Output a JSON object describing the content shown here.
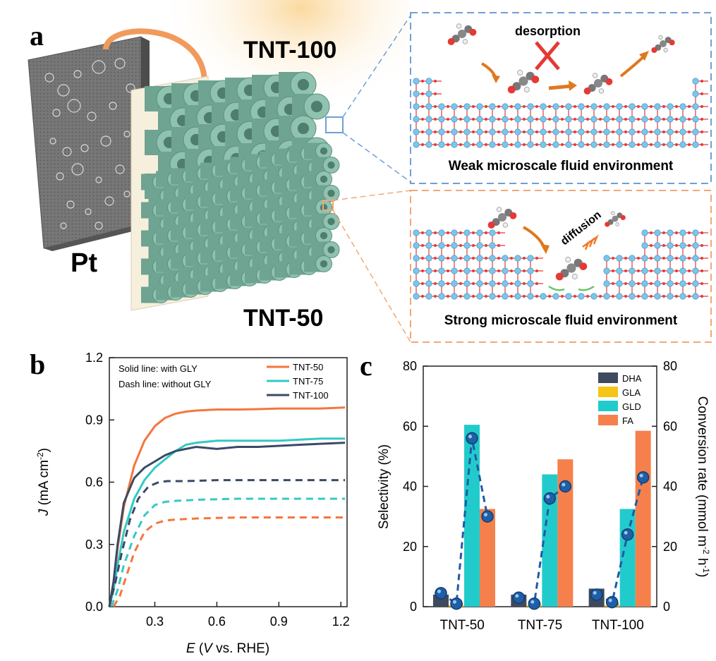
{
  "panel_a": {
    "label": "a",
    "electrode_label": "Pt",
    "tnt100_label": "TNT-100",
    "tnt50_label": "TNT-50",
    "top_box": {
      "process_label": "desorption",
      "caption": "Weak microscale fluid environment"
    },
    "bottom_box": {
      "process_label": "diffusion",
      "caption": "Strong microscale fluid environment"
    },
    "colors": {
      "tube": "#8fc3b0",
      "tube_dark": "#6fa392",
      "electrode": "#6b6b6b",
      "cable": "#f19a5c",
      "blue_box": "#6f9fd8",
      "orange_box": "#f1a878",
      "atom_ti": "#7ec5ea",
      "atom_o": "#e53935"
    }
  },
  "panel_b": {
    "label": "b"
  },
  "panel_c": {
    "label": "c"
  },
  "chart_data": [
    {
      "type": "line",
      "title": "",
      "xlabel": "E (V vs. RHE)",
      "ylabel": "J (mA cm-2)",
      "xlim": [
        0.08,
        1.23
      ],
      "ylim": [
        0,
        1.2
      ],
      "xticks": [
        "0.3",
        "0.6",
        "0.9",
        "1.2"
      ],
      "yticks": [
        "0.0",
        "0.3",
        "0.6",
        "0.9",
        "1.2"
      ],
      "annotations": [
        "Solid line: with GLY",
        "Dash line: without GLY"
      ],
      "legend": [
        "TNT-50",
        "TNT-75",
        "TNT-100"
      ],
      "legend_position": "top-right",
      "colors": {
        "TNT-50": "#f4763f",
        "TNT-75": "#35c9c3",
        "TNT-100": "#3a4a66"
      },
      "series": [
        {
          "name": "TNT-50",
          "style": "solid",
          "x": [
            0.08,
            0.1,
            0.12,
            0.15,
            0.2,
            0.25,
            0.3,
            0.35,
            0.4,
            0.45,
            0.5,
            0.6,
            0.7,
            0.8,
            0.9,
            1.0,
            1.1,
            1.22
          ],
          "y": [
            0.0,
            0.1,
            0.28,
            0.48,
            0.68,
            0.8,
            0.87,
            0.91,
            0.93,
            0.94,
            0.945,
            0.95,
            0.95,
            0.952,
            0.955,
            0.955,
            0.955,
            0.96
          ]
        },
        {
          "name": "TNT-75",
          "style": "solid",
          "x": [
            0.08,
            0.1,
            0.12,
            0.15,
            0.2,
            0.25,
            0.3,
            0.35,
            0.4,
            0.45,
            0.5,
            0.6,
            0.7,
            0.8,
            0.9,
            1.0,
            1.1,
            1.22
          ],
          "y": [
            0.0,
            0.08,
            0.2,
            0.36,
            0.52,
            0.61,
            0.67,
            0.71,
            0.75,
            0.78,
            0.79,
            0.8,
            0.8,
            0.8,
            0.8,
            0.805,
            0.81,
            0.81
          ]
        },
        {
          "name": "TNT-100",
          "style": "solid",
          "x": [
            0.08,
            0.1,
            0.12,
            0.15,
            0.2,
            0.25,
            0.3,
            0.35,
            0.4,
            0.45,
            0.5,
            0.6,
            0.7,
            0.8,
            0.9,
            1.0,
            1.1,
            1.22
          ],
          "y": [
            0.0,
            0.12,
            0.3,
            0.5,
            0.62,
            0.67,
            0.7,
            0.73,
            0.75,
            0.76,
            0.77,
            0.76,
            0.77,
            0.77,
            0.775,
            0.78,
            0.785,
            0.79
          ]
        },
        {
          "name": "TNT-50 (without GLY)",
          "style": "dashed",
          "x": [
            0.1,
            0.13,
            0.16,
            0.2,
            0.25,
            0.3,
            0.35,
            0.4,
            0.5,
            0.7,
            0.9,
            1.22
          ],
          "y": [
            0.0,
            0.05,
            0.14,
            0.26,
            0.36,
            0.4,
            0.415,
            0.42,
            0.425,
            0.43,
            0.43,
            0.43
          ]
        },
        {
          "name": "TNT-75 (without GLY)",
          "style": "dashed",
          "x": [
            0.09,
            0.12,
            0.15,
            0.2,
            0.25,
            0.3,
            0.35,
            0.4,
            0.5,
            0.7,
            0.9,
            1.22
          ],
          "y": [
            0.0,
            0.08,
            0.2,
            0.34,
            0.44,
            0.49,
            0.505,
            0.51,
            0.515,
            0.52,
            0.52,
            0.52
          ]
        },
        {
          "name": "TNT-100 (without GLY)",
          "style": "dashed",
          "x": [
            0.08,
            0.11,
            0.14,
            0.18,
            0.22,
            0.27,
            0.32,
            0.36,
            0.45,
            0.6,
            0.9,
            1.22
          ],
          "y": [
            0.0,
            0.12,
            0.26,
            0.42,
            0.52,
            0.58,
            0.6,
            0.605,
            0.605,
            0.61,
            0.61,
            0.61
          ]
        }
      ]
    },
    {
      "type": "bar",
      "title": "",
      "xlabel": "",
      "ylabel": "Selectivity (%)",
      "y2label": "Conversion rate (mmol m-2 h-1)",
      "ylim": [
        0,
        80
      ],
      "y2lim": [
        0,
        80
      ],
      "yticks": [
        "0",
        "20",
        "40",
        "60",
        "80"
      ],
      "categories": [
        "TNT-50",
        "TNT-75",
        "TNT-100"
      ],
      "legend_position": "top-right",
      "series": [
        {
          "name": "DHA",
          "color": "#3f4a5e",
          "values": [
            4,
            4,
            6
          ]
        },
        {
          "name": "GLA",
          "color": "#f5c518",
          "values": [
            0.5,
            0.5,
            0.5
          ]
        },
        {
          "name": "GLD",
          "color": "#22cbcb",
          "values": [
            60.5,
            44,
            32.5
          ]
        },
        {
          "name": "FA",
          "color": "#f5804c",
          "values": [
            32.5,
            49,
            58.5
          ]
        }
      ],
      "conversion_rate": {
        "values": [
          [
            4.5,
            1,
            56,
            30
          ],
          [
            3,
            1,
            36,
            40
          ],
          [
            4,
            1.5,
            24,
            43
          ]
        ]
      }
    }
  ]
}
